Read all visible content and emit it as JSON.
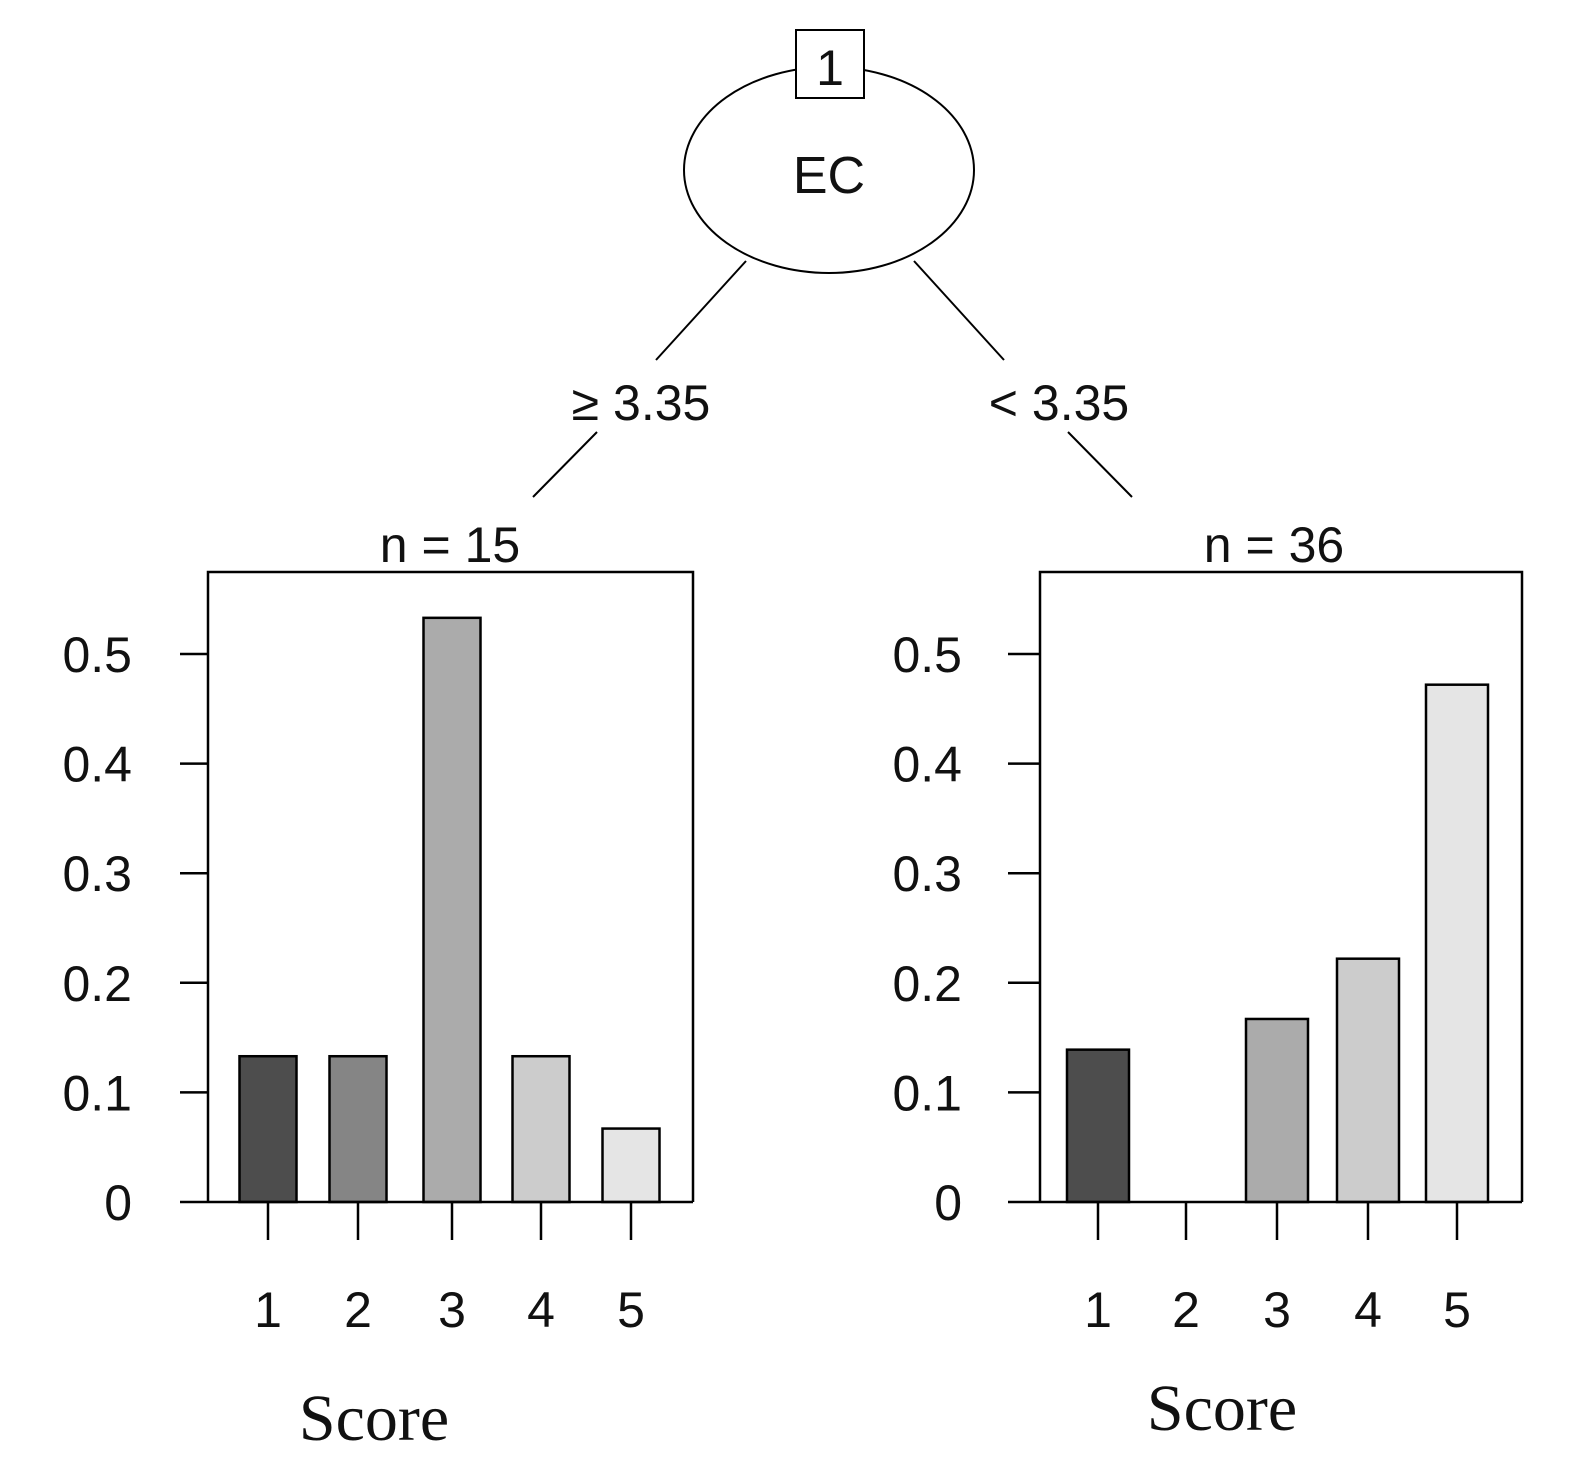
{
  "tree": {
    "root": {
      "id_label": "1",
      "variable": "EC"
    },
    "branches": [
      {
        "label": "≥ 3.35"
      },
      {
        "label": "< 3.35"
      }
    ]
  },
  "chart_data": [
    {
      "type": "bar",
      "title": "n = 15",
      "xlabel": "Score",
      "ylabel": "",
      "categories": [
        "1",
        "2",
        "3",
        "4",
        "5"
      ],
      "values": [
        0.133,
        0.133,
        0.533,
        0.133,
        0.067
      ],
      "bar_colors": [
        "#4d4d4d",
        "#858585",
        "#ababab",
        "#cccccc",
        "#e5e5e5"
      ],
      "yticks": [
        0,
        0.1,
        0.2,
        0.3,
        0.4,
        0.5
      ],
      "ytick_labels": [
        "0",
        "0.1",
        "0.2",
        "0.3",
        "0.4",
        "0.5"
      ],
      "ylim": [
        0,
        0.58
      ],
      "grid": false
    },
    {
      "type": "bar",
      "title": "n = 36",
      "xlabel": "Score",
      "ylabel": "",
      "categories": [
        "1",
        "2",
        "3",
        "4",
        "5"
      ],
      "values": [
        0.139,
        0.0,
        0.167,
        0.222,
        0.472
      ],
      "bar_colors": [
        "#4d4d4d",
        "#858585",
        "#ababab",
        "#cccccc",
        "#e5e5e5"
      ],
      "yticks": [
        0,
        0.1,
        0.2,
        0.3,
        0.4,
        0.5
      ],
      "ytick_labels": [
        "0",
        "0.1",
        "0.2",
        "0.3",
        "0.4",
        "0.5"
      ],
      "ylim": [
        0,
        0.58
      ],
      "grid": false
    }
  ]
}
